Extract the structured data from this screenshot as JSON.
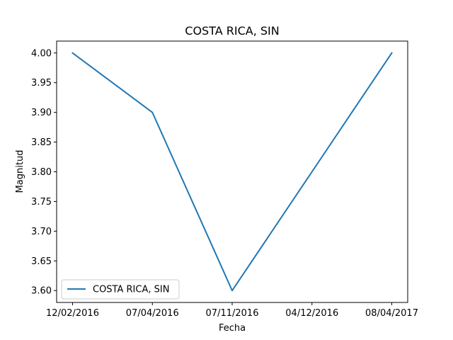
{
  "chart_data": {
    "type": "line",
    "title": "COSTA RICA, SIN",
    "xlabel": "Fecha",
    "ylabel": "Magnitud",
    "x": [
      "12/02/2016",
      "07/04/2016",
      "07/11/2016",
      "04/12/2016",
      "08/04/2017"
    ],
    "xticks": [
      "12/02/2016",
      "07/04/2016",
      "07/11/2016",
      "04/12/2016",
      "08/04/2017"
    ],
    "series": [
      {
        "name": "COSTA RICA, SIN",
        "values": [
          4.0,
          3.9,
          3.6,
          3.8,
          4.0
        ]
      }
    ],
    "ylim": [
      3.58,
      4.02
    ],
    "yticks": [
      3.6,
      3.65,
      3.7,
      3.75,
      3.8,
      3.85,
      3.9,
      3.95,
      4.0
    ],
    "grid": false,
    "legend": "lower-left",
    "colors": {
      "line": "#1f77b4",
      "axes": "#000000",
      "legend_border": "#cccccc"
    }
  }
}
